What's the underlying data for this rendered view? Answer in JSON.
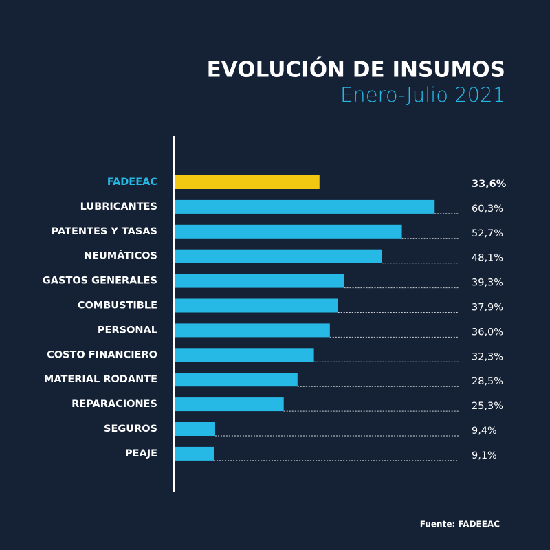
{
  "chart_data": {
    "type": "hbar",
    "title": "EVOLUCIÓN DE INSUMOS",
    "subtitle": "Enero-Julio 2021",
    "categories": [
      "FADEEAC",
      "LUBRICANTES",
      "PATENTES Y TASAS",
      "NEUMÁTICOS",
      "GASTOS GENERALES",
      "COMBUSTIBLE",
      "PERSONAL",
      "COSTO FINANCIERO",
      "MATERIAL RODANTE",
      "REPARACIONES",
      "SEGUROS",
      "PEAJE"
    ],
    "values": [
      33.6,
      60.3,
      52.7,
      48.1,
      39.3,
      37.9,
      36.0,
      32.3,
      28.5,
      25.3,
      9.4,
      9.1
    ],
    "value_labels": [
      "33,6%",
      "60,3%",
      "52,7%",
      "48,1%",
      "39,3%",
      "37,9%",
      "36,0%",
      "32,3%",
      "28,5%",
      "25,3%",
      "9,4%",
      "9,1%"
    ],
    "colors": [
      "#f2c813",
      "#27b9e6",
      "#27b9e6",
      "#27b9e6",
      "#27b9e6",
      "#27b9e6",
      "#27b9e6",
      "#27b9e6",
      "#27b9e6",
      "#27b9e6",
      "#27b9e6",
      "#27b9e6"
    ],
    "xlim": [
      0,
      66
    ],
    "source": "Fuente: FADEEAC"
  }
}
